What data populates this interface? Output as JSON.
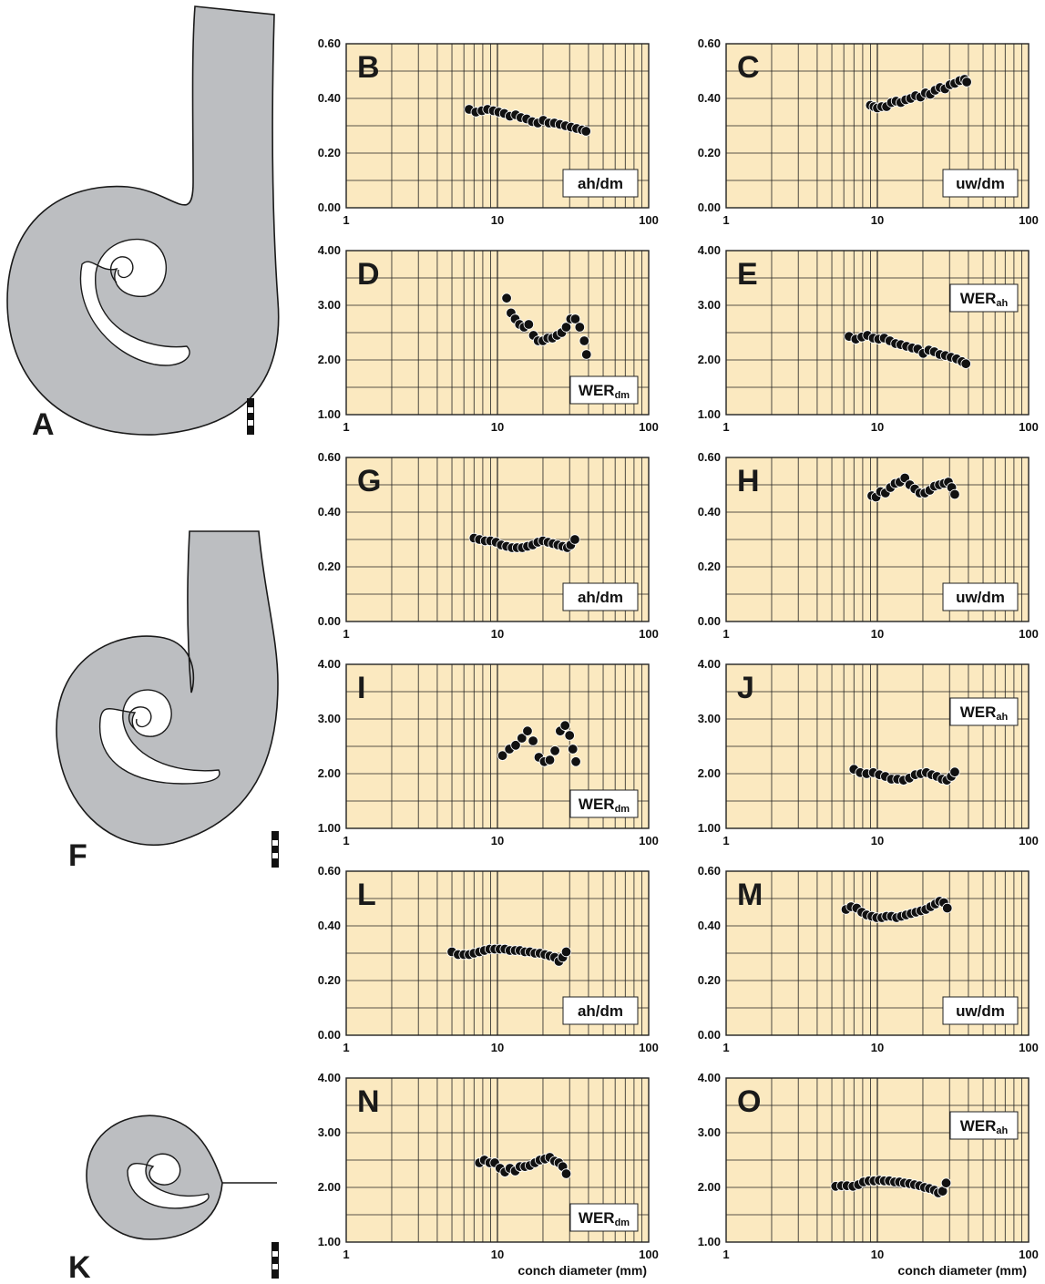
{
  "figure": {
    "specimen_labels": [
      "A",
      "F",
      "K"
    ],
    "colors": {
      "plot_background": "#fbe9c0",
      "grid": "#222222",
      "shell_fill": "#bcbec1",
      "shell_stroke": "#1a1a1a",
      "marker": "#111111"
    }
  },
  "chart_data": [
    {
      "panel": "B",
      "type": "scatter",
      "ratio": "ah/dm",
      "sub": "",
      "xlim": [
        1,
        100
      ],
      "xscale": "log",
      "xticks": [
        "1",
        "10",
        "100"
      ],
      "ylim": [
        0,
        0.6
      ],
      "yticks": [
        "0.00",
        "0.20",
        "0.40",
        "0.60"
      ],
      "xlabel": "",
      "x": [
        6.5,
        7.2,
        7.9,
        8.6,
        9.4,
        10.2,
        11.1,
        12.1,
        13.2,
        14.3,
        15.6,
        17.0,
        18.5,
        20.1,
        21.9,
        23.8,
        25.9,
        28.2,
        30.7,
        33.4,
        36.3,
        38.5
      ],
      "y": [
        0.36,
        0.35,
        0.355,
        0.36,
        0.355,
        0.35,
        0.345,
        0.335,
        0.34,
        0.33,
        0.325,
        0.315,
        0.31,
        0.32,
        0.31,
        0.31,
        0.305,
        0.3,
        0.295,
        0.29,
        0.285,
        0.28
      ]
    },
    {
      "panel": "C",
      "type": "scatter",
      "ratio": "uw/dm",
      "sub": "",
      "xlim": [
        1,
        100
      ],
      "xscale": "log",
      "xticks": [
        "1",
        "10",
        "100"
      ],
      "ylim": [
        0,
        0.6
      ],
      "yticks": [
        "0.00",
        "0.20",
        "0.40",
        "0.60"
      ],
      "xlabel": "",
      "x": [
        9.0,
        9.5,
        10.0,
        10.7,
        11.5,
        12.4,
        13.3,
        14.3,
        15.4,
        16.6,
        17.9,
        19.3,
        20.8,
        22.4,
        24.1,
        26.0,
        28.0,
        30.2,
        32.5,
        35.0,
        37.7,
        39.0
      ],
      "y": [
        0.375,
        0.37,
        0.365,
        0.37,
        0.37,
        0.385,
        0.39,
        0.385,
        0.395,
        0.4,
        0.41,
        0.405,
        0.42,
        0.415,
        0.43,
        0.44,
        0.435,
        0.45,
        0.455,
        0.465,
        0.47,
        0.46
      ]
    },
    {
      "panel": "D",
      "type": "scatter",
      "ratio": "WER",
      "sub": "dm",
      "xlim": [
        1,
        100
      ],
      "xscale": "log",
      "xticks": [
        "1",
        "10",
        "100"
      ],
      "ylim": [
        1,
        4
      ],
      "yticks": [
        "1.00",
        "2.00",
        "3.00",
        "4.00"
      ],
      "xlabel": "",
      "x": [
        11.5,
        12.3,
        13.1,
        14.0,
        15.0,
        16.1,
        17.3,
        18.6,
        20.0,
        21.5,
        23.1,
        24.8,
        26.6,
        28.5,
        30.5,
        32.7,
        35.0,
        37.5,
        38.8
      ],
      "y": [
        3.13,
        2.86,
        2.75,
        2.65,
        2.6,
        2.65,
        2.45,
        2.35,
        2.35,
        2.4,
        2.4,
        2.45,
        2.5,
        2.6,
        2.75,
        2.75,
        2.6,
        2.35,
        2.1
      ]
    },
    {
      "panel": "E",
      "type": "scatter",
      "ratio": "WER",
      "sub": "ah",
      "xlim": [
        1,
        100
      ],
      "xscale": "log",
      "xticks": [
        "1",
        "10",
        "100"
      ],
      "ylim": [
        1,
        4
      ],
      "yticks": [
        "1.00",
        "2.00",
        "3.00",
        "4.00"
      ],
      "xlabel": "",
      "x": [
        6.5,
        7.2,
        7.9,
        8.6,
        9.4,
        10.2,
        11.1,
        12.1,
        13.2,
        14.3,
        15.6,
        17.0,
        18.5,
        20.1,
        21.9,
        23.8,
        25.9,
        28.2,
        30.7,
        33.4,
        36.3,
        38.5
      ],
      "y": [
        2.43,
        2.38,
        2.42,
        2.45,
        2.4,
        2.38,
        2.4,
        2.35,
        2.3,
        2.28,
        2.25,
        2.22,
        2.2,
        2.12,
        2.18,
        2.15,
        2.1,
        2.08,
        2.05,
        2.02,
        1.97,
        1.93
      ]
    },
    {
      "panel": "G",
      "type": "scatter",
      "ratio": "ah/dm",
      "sub": "",
      "xlim": [
        1,
        100
      ],
      "xscale": "log",
      "xticks": [
        "1",
        "10",
        "100"
      ],
      "ylim": [
        0,
        0.6
      ],
      "yticks": [
        "0.00",
        "0.20",
        "0.40",
        "0.60"
      ],
      "xlabel": "",
      "x": [
        7.0,
        7.6,
        8.3,
        9.0,
        9.8,
        10.6,
        11.5,
        12.5,
        13.5,
        14.6,
        15.8,
        17.1,
        18.5,
        20.0,
        21.6,
        23.3,
        25.1,
        27.0,
        29.0,
        30.5,
        32.5
      ],
      "y": [
        0.305,
        0.3,
        0.295,
        0.295,
        0.29,
        0.28,
        0.275,
        0.27,
        0.27,
        0.27,
        0.275,
        0.28,
        0.29,
        0.295,
        0.29,
        0.285,
        0.28,
        0.275,
        0.27,
        0.28,
        0.3
      ]
    },
    {
      "panel": "H",
      "type": "scatter",
      "ratio": "uw/dm",
      "sub": "",
      "xlim": [
        1,
        100
      ],
      "xscale": "log",
      "xticks": [
        "1",
        "10",
        "100"
      ],
      "ylim": [
        0,
        0.6
      ],
      "yticks": [
        "0.00",
        "0.20",
        "0.40",
        "0.60"
      ],
      "xlabel": "",
      "x": [
        9.2,
        9.8,
        10.5,
        11.3,
        12.2,
        13.1,
        14.1,
        15.2,
        16.4,
        17.7,
        19.1,
        20.6,
        22.2,
        23.9,
        25.7,
        27.6,
        29.5,
        31.0,
        32.5
      ],
      "y": [
        0.46,
        0.455,
        0.475,
        0.47,
        0.49,
        0.505,
        0.51,
        0.525,
        0.5,
        0.485,
        0.47,
        0.47,
        0.48,
        0.495,
        0.5,
        0.505,
        0.51,
        0.49,
        0.465
      ]
    },
    {
      "panel": "I",
      "type": "scatter",
      "ratio": "WER",
      "sub": "dm",
      "xlim": [
        1,
        100
      ],
      "xscale": "log",
      "xticks": [
        "1",
        "10",
        "100"
      ],
      "ylim": [
        1,
        4
      ],
      "yticks": [
        "1.00",
        "2.00",
        "3.00",
        "4.00"
      ],
      "xlabel": "",
      "x": [
        10.8,
        12.0,
        13.2,
        14.5,
        15.8,
        17.2,
        18.8,
        20.4,
        22.2,
        24.0,
        26.0,
        28.0,
        30.0,
        31.5,
        33.0
      ],
      "y": [
        2.33,
        2.45,
        2.52,
        2.65,
        2.78,
        2.6,
        2.3,
        2.22,
        2.25,
        2.42,
        2.78,
        2.88,
        2.7,
        2.45,
        2.22
      ]
    },
    {
      "panel": "J",
      "type": "scatter",
      "ratio": "WER",
      "sub": "ah",
      "xlim": [
        1,
        100
      ],
      "xscale": "log",
      "xticks": [
        "1",
        "10",
        "100"
      ],
      "ylim": [
        1,
        4
      ],
      "yticks": [
        "1.00",
        "2.00",
        "3.00",
        "4.00"
      ],
      "xlabel": "",
      "x": [
        7.0,
        7.7,
        8.5,
        9.4,
        10.3,
        11.3,
        12.4,
        13.6,
        14.9,
        16.3,
        17.8,
        19.4,
        21.1,
        22.9,
        24.8,
        26.8,
        28.8,
        30.8,
        32.5
      ],
      "y": [
        2.08,
        2.02,
        2.0,
        2.02,
        1.98,
        1.95,
        1.9,
        1.9,
        1.88,
        1.92,
        1.98,
        2.0,
        2.02,
        1.98,
        1.95,
        1.9,
        1.88,
        1.95,
        2.03
      ]
    },
    {
      "panel": "L",
      "type": "scatter",
      "ratio": "ah/dm",
      "sub": "",
      "xlim": [
        1,
        100
      ],
      "xscale": "log",
      "xticks": [
        "1",
        "10",
        "100"
      ],
      "ylim": [
        0,
        0.6
      ],
      "yticks": [
        "0.00",
        "0.20",
        "0.40",
        "0.60"
      ],
      "xlabel": "",
      "x": [
        5.0,
        5.5,
        6.0,
        6.5,
        7.0,
        7.6,
        8.2,
        8.9,
        9.6,
        10.4,
        11.2,
        12.1,
        13.1,
        14.1,
        15.2,
        16.4,
        17.7,
        19.1,
        20.6,
        22.2,
        23.9,
        25.5,
        27.0,
        28.5
      ],
      "y": [
        0.305,
        0.295,
        0.295,
        0.295,
        0.3,
        0.305,
        0.31,
        0.315,
        0.315,
        0.315,
        0.315,
        0.31,
        0.31,
        0.31,
        0.305,
        0.305,
        0.3,
        0.3,
        0.295,
        0.29,
        0.285,
        0.27,
        0.285,
        0.305
      ]
    },
    {
      "panel": "M",
      "type": "scatter",
      "ratio": "uw/dm",
      "sub": "",
      "xlim": [
        1,
        100
      ],
      "xscale": "log",
      "xticks": [
        "1",
        "10",
        "100"
      ],
      "ylim": [
        0,
        0.6
      ],
      "yticks": [
        "0.00",
        "0.20",
        "0.40",
        "0.60"
      ],
      "xlabel": "",
      "x": [
        6.2,
        6.7,
        7.3,
        7.9,
        8.5,
        9.2,
        9.9,
        10.7,
        11.5,
        12.4,
        13.4,
        14.4,
        15.5,
        16.7,
        18.0,
        19.4,
        20.9,
        22.5,
        24.2,
        25.8,
        27.5,
        29.0
      ],
      "y": [
        0.46,
        0.47,
        0.465,
        0.45,
        0.44,
        0.435,
        0.43,
        0.43,
        0.435,
        0.435,
        0.43,
        0.435,
        0.44,
        0.445,
        0.45,
        0.455,
        0.46,
        0.47,
        0.48,
        0.49,
        0.485,
        0.465
      ]
    },
    {
      "panel": "N",
      "type": "scatter",
      "ratio": "WER",
      "sub": "dm",
      "xlim": [
        1,
        100
      ],
      "xscale": "log",
      "xticks": [
        "1",
        "10",
        "100"
      ],
      "ylim": [
        1,
        4
      ],
      "yticks": [
        "1.00",
        "2.00",
        "3.00",
        "4.00"
      ],
      "xlabel": "conch diameter (mm)",
      "x": [
        7.6,
        8.2,
        8.9,
        9.6,
        10.4,
        11.2,
        12.1,
        13.1,
        14.1,
        15.2,
        16.4,
        17.7,
        19.1,
        20.6,
        22.2,
        23.9,
        25.5,
        27.0,
        28.5
      ],
      "y": [
        2.45,
        2.5,
        2.45,
        2.45,
        2.35,
        2.28,
        2.35,
        2.3,
        2.38,
        2.38,
        2.4,
        2.45,
        2.5,
        2.52,
        2.55,
        2.48,
        2.45,
        2.38,
        2.25
      ]
    },
    {
      "panel": "O",
      "type": "scatter",
      "ratio": "WER",
      "sub": "ah",
      "xlim": [
        1,
        100
      ],
      "xscale": "log",
      "xticks": [
        "1",
        "10",
        "100"
      ],
      "ylim": [
        1,
        4
      ],
      "yticks": [
        "1.00",
        "2.00",
        "3.00",
        "4.00"
      ],
      "xlabel": "conch diameter (mm)",
      "x": [
        5.3,
        5.8,
        6.3,
        6.9,
        7.5,
        8.1,
        8.8,
        9.5,
        10.3,
        11.1,
        12.0,
        13.0,
        14.0,
        15.1,
        16.3,
        17.6,
        19.0,
        20.5,
        22.1,
        23.8,
        25.3,
        27.0,
        28.5
      ],
      "y": [
        2.02,
        2.03,
        2.03,
        2.02,
        2.05,
        2.1,
        2.12,
        2.12,
        2.13,
        2.12,
        2.12,
        2.1,
        2.1,
        2.08,
        2.07,
        2.05,
        2.03,
        2.0,
        1.98,
        1.95,
        1.9,
        1.93,
        2.08
      ]
    }
  ]
}
